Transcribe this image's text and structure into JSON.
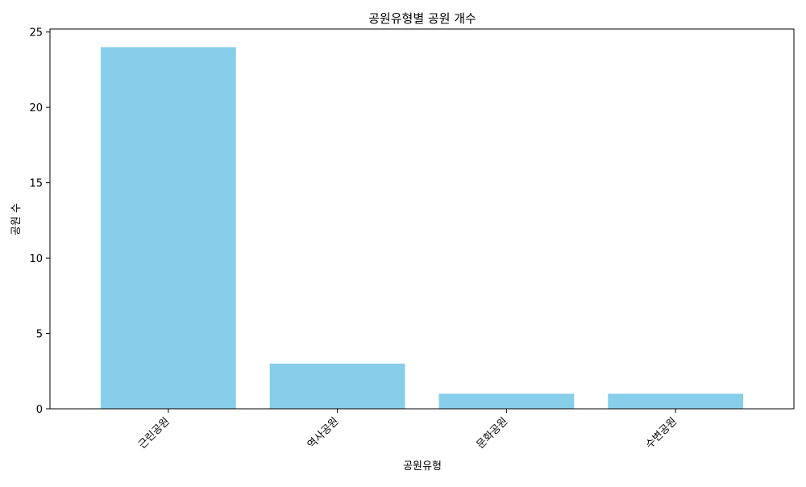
{
  "chart_data": {
    "type": "bar",
    "title": "공원유형별 공원 개수",
    "xlabel": "공원유형",
    "ylabel": "공원 수",
    "categories": [
      "근린공원",
      "역사공원",
      "문화공원",
      "수변공원"
    ],
    "values": [
      24,
      3,
      1,
      1
    ],
    "ylim": [
      0,
      25.2
    ],
    "yticks": [
      0,
      5,
      10,
      15,
      20,
      25
    ],
    "bar_color": "#87CEEB",
    "grid": false,
    "legend": "none"
  }
}
